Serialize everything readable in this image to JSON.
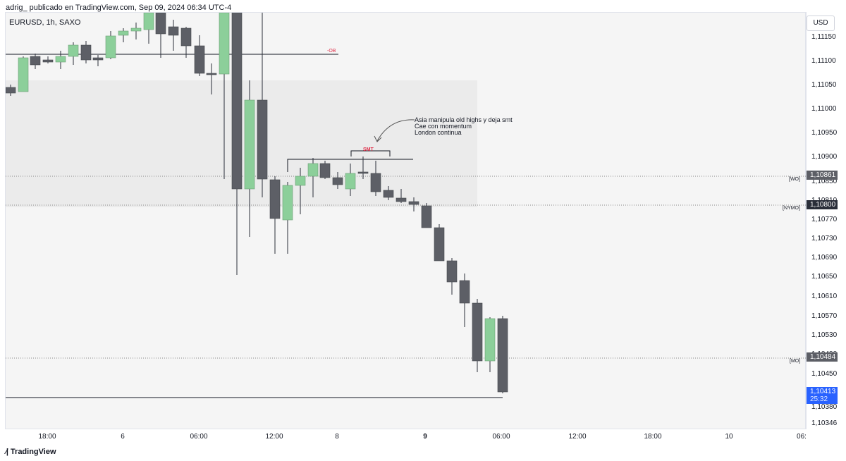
{
  "header": {
    "text": "adrig_ publicado en TradingView.com, Sep 09, 2024 06:34 UTC-4"
  },
  "symbol": {
    "text": "EURUSD, 1h, SAXO"
  },
  "price_axis": {
    "currency": "USD",
    "ticks": [
      "1,11150",
      "1,11100",
      "1,11050",
      "1,11000",
      "1,10950",
      "1,10900",
      "1,10850",
      "1,10810",
      "1,10770",
      "1,10730",
      "1,10690",
      "1,10650",
      "1,10610",
      "1,10570",
      "1,10530",
      "1,10490",
      "1,10450",
      "1,10380",
      "1,10346"
    ]
  },
  "time_axis": {
    "labels": [
      "18:00",
      "6",
      "06:00",
      "12:00",
      "8",
      "9",
      "06:00",
      "12:00",
      "18:00",
      "10",
      "06:"
    ]
  },
  "badges": {
    "wo_price": "1,10861",
    "nymo_price": "1,10800",
    "mo_price": "1,10484",
    "last_price": "1,10413",
    "countdown": "25:32"
  },
  "levels": {
    "wo": "[WO]",
    "nymo": "[NYMO]",
    "mo": "[MO]"
  },
  "annotations": {
    "ob": "-OB",
    "smt": "SMT",
    "note1": "Asia manipula old highs y deja smt",
    "note2": "Cae con momentum",
    "note3": "London continua"
  },
  "footer": {
    "brand": "TradingView",
    "logo_glyph": "⁄|"
  },
  "colors": {
    "bull": "#8ccf9a",
    "bear": "#5d5f66",
    "last_price": "#2962ff",
    "annotation_red": "#e0314b"
  }
}
